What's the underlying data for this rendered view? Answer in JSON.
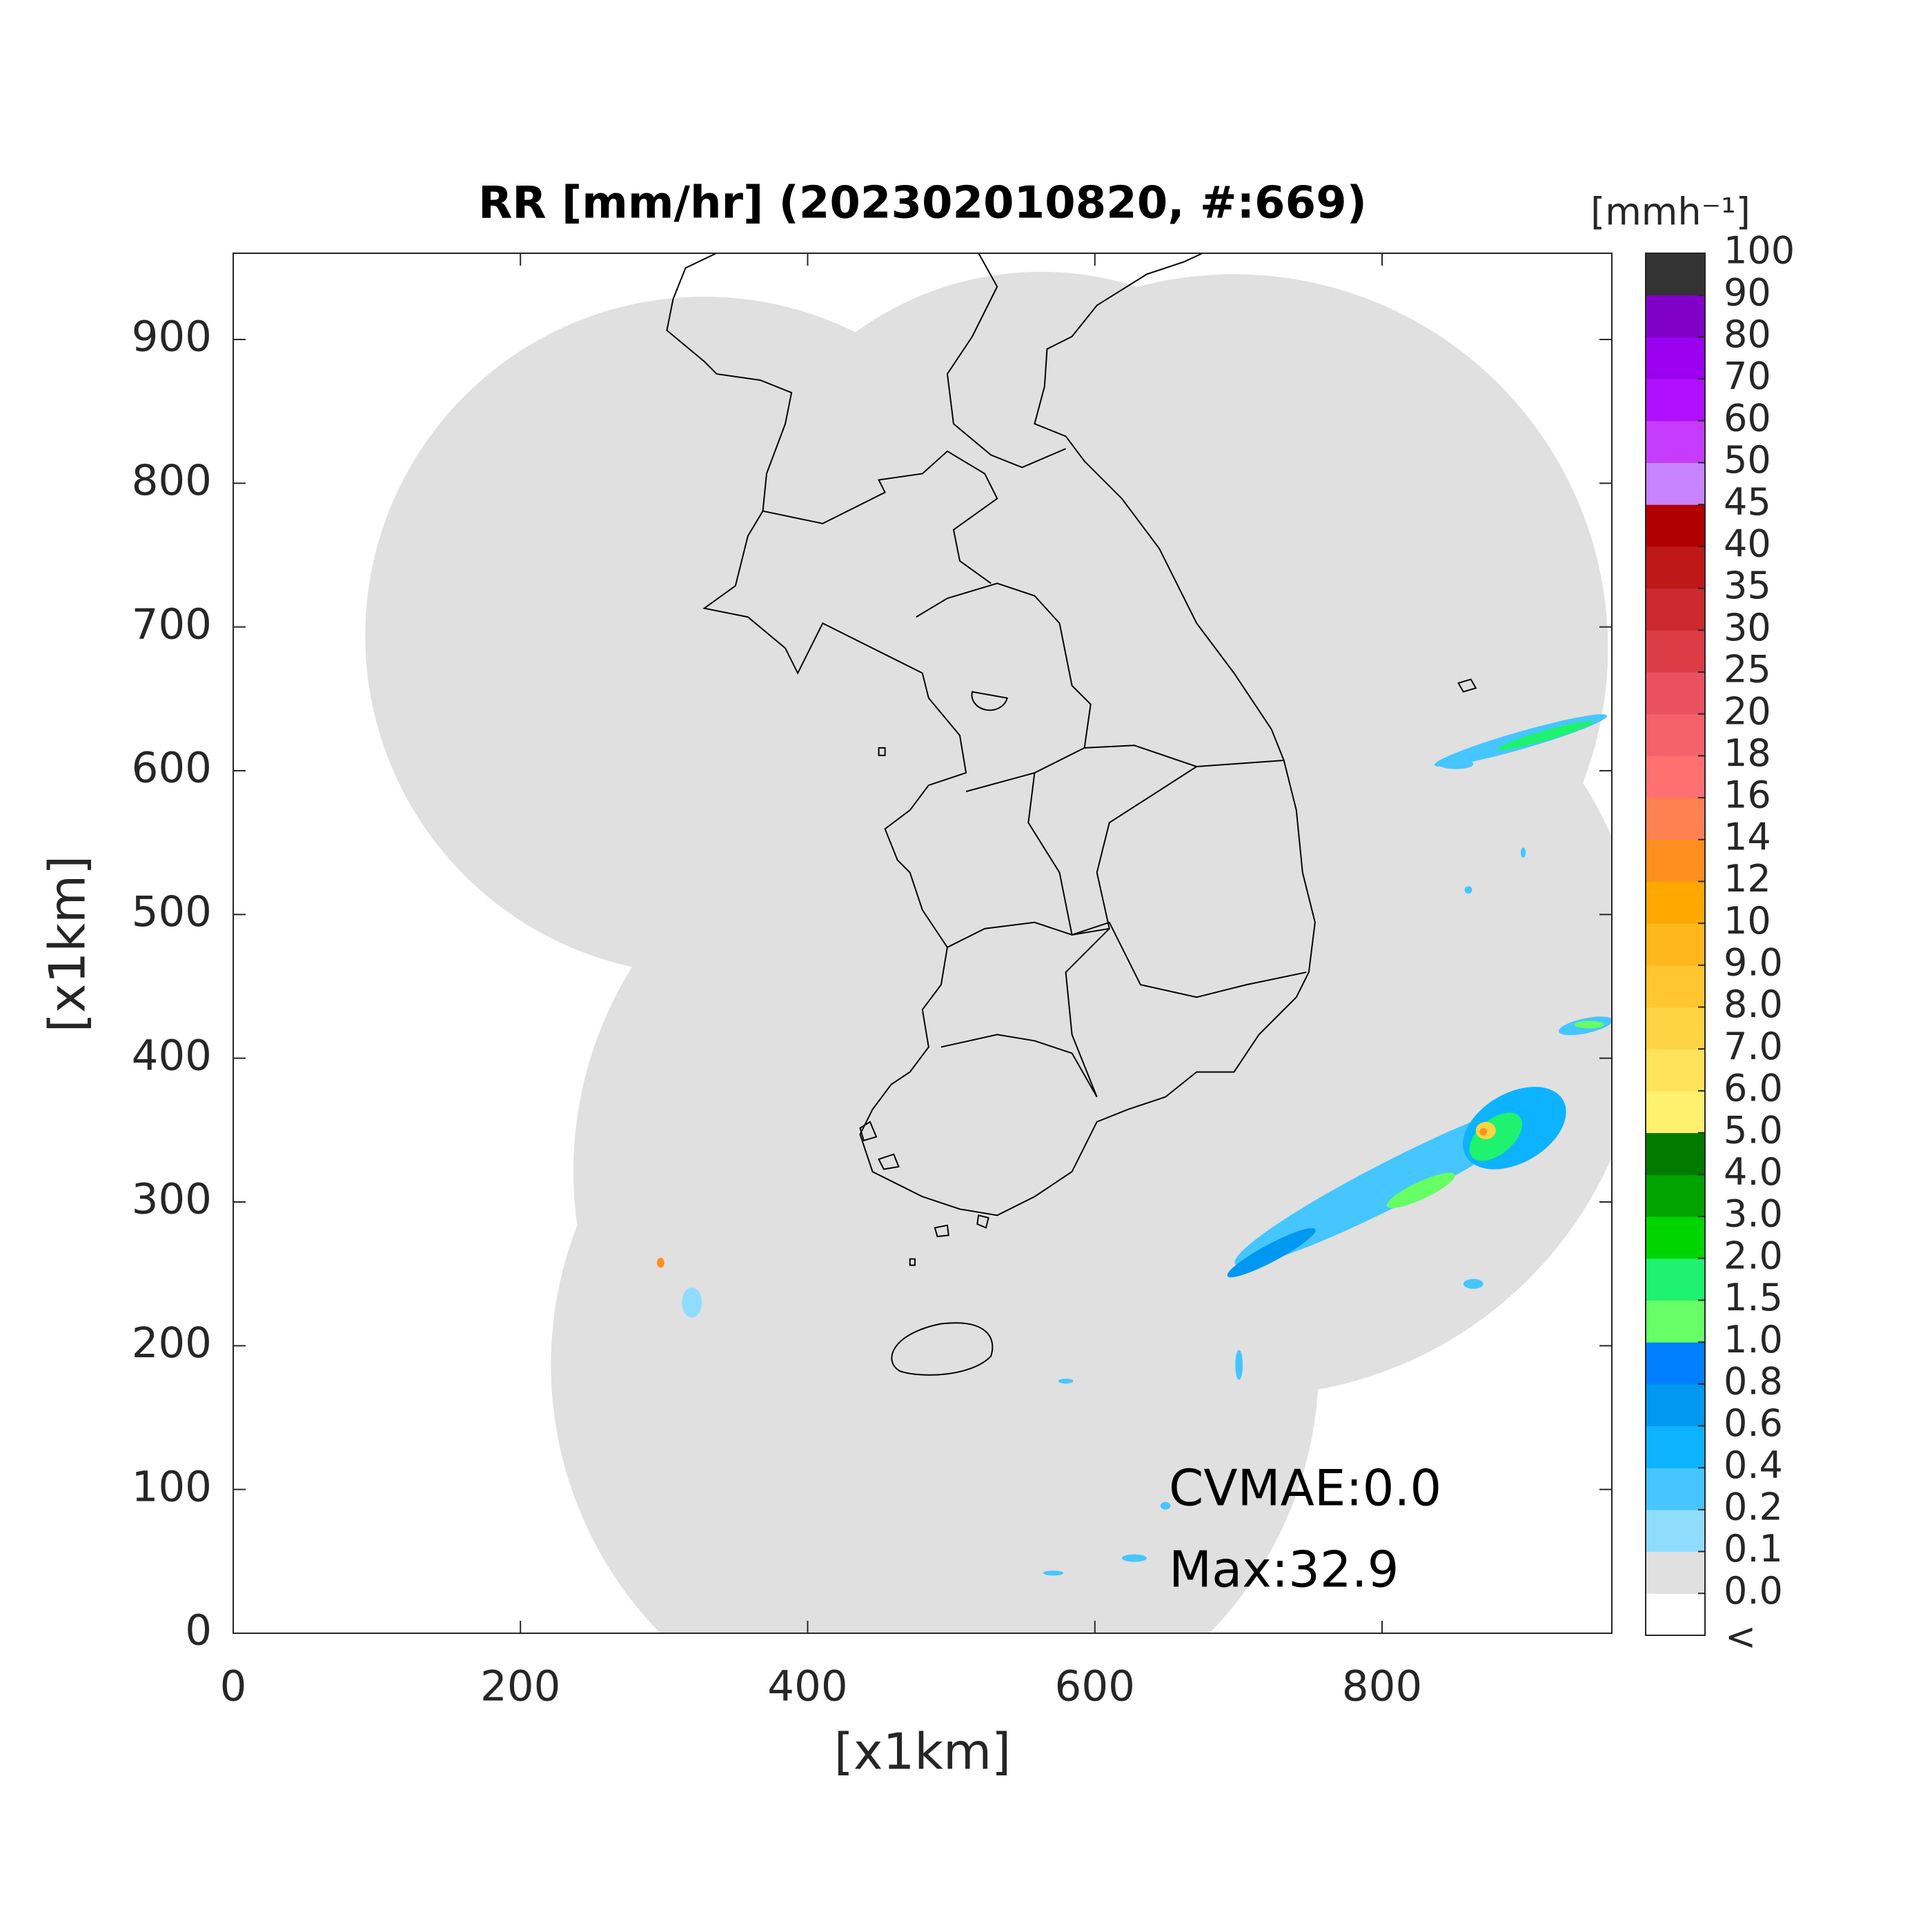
{
  "chart_data": {
    "type": "map",
    "title": "RR [mm/hr] (202302010820, #:669)",
    "x_label": "[x1km]",
    "y_label": "[x1km]",
    "xlim": [
      0,
      960
    ],
    "ylim": [
      0,
      960
    ],
    "xticks": [
      0,
      200,
      400,
      600,
      800
    ],
    "yticks": [
      0,
      100,
      200,
      300,
      400,
      500,
      600,
      700,
      800,
      900
    ],
    "grid": false,
    "annotations": [
      "CVMAE:0.0",
      "Max:32.9"
    ],
    "colorbar": {
      "title": "[mmh⁻¹]",
      "under_label": "<",
      "colors": [
        "#ffffff",
        "#e0e0e0",
        "#8fdcff",
        "#45c6ff",
        "#0db3ff",
        "#0098f0",
        "#0080ff",
        "#66ff66",
        "#1ef26e",
        "#00d500",
        "#00a300",
        "#007a00",
        "#fff06e",
        "#ffe259",
        "#ffd444",
        "#ffc630",
        "#ffb81c",
        "#ffa800",
        "#ff8f1f",
        "#ff8050",
        "#ff7070",
        "#f5626a",
        "#eb5060",
        "#dc3c46",
        "#cc2a2e",
        "#be1818",
        "#b00000",
        "#c883ff",
        "#c63cff",
        "#b010ff",
        "#9b00f0",
        "#8000c8",
        "#333333"
      ],
      "ticks": [
        {
          "value": 0,
          "label": "0.0"
        },
        0.1,
        0.2,
        0.4,
        0.6,
        0.8,
        {
          "value": 1,
          "label": "1.0"
        },
        1.5,
        {
          "value": 2,
          "label": "2.0"
        },
        {
          "value": 3,
          "label": "3.0"
        },
        {
          "value": 4,
          "label": "4.0"
        },
        {
          "value": 5,
          "label": "5.0"
        },
        {
          "value": 6,
          "label": "6.0"
        },
        {
          "value": 7,
          "label": "7.0"
        },
        {
          "value": 8,
          "label": "8.0"
        },
        {
          "value": 9,
          "label": "9.0"
        },
        10,
        12,
        14,
        16,
        18,
        20,
        25,
        30,
        35,
        40,
        45,
        50,
        60,
        70,
        80,
        90,
        100
      ]
    }
  }
}
